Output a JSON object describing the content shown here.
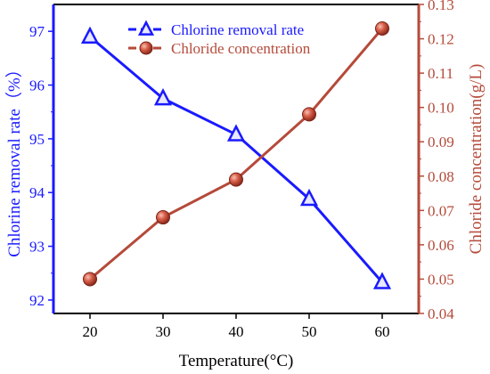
{
  "chart_data": {
    "type": "line",
    "x": [
      20,
      30,
      40,
      50,
      60
    ],
    "xlabel": "Temperature(°C)",
    "xlim": [
      15,
      65
    ],
    "xticks": [
      20,
      30,
      40,
      50,
      60
    ],
    "ylabel_left": "Chlorine removal rate（%）",
    "ylim_left": [
      91.75,
      97.5
    ],
    "yticks_left": [
      92,
      93,
      94,
      95,
      96,
      97
    ],
    "ylabel_right": "Chloride concentration(g/L)",
    "ylim_right": [
      0.04,
      0.13
    ],
    "yticks_right": [
      "0.04",
      "0.05",
      "0.06",
      "0.07",
      "0.08",
      "0.09",
      "0.10",
      "0.11",
      "0.12",
      "0.13"
    ],
    "legend_position": "top-center",
    "series": [
      {
        "name": "Chlorine removal rate",
        "axis": "left",
        "marker": "triangle",
        "color": "#1a1aff",
        "values": [
          96.9,
          95.75,
          95.08,
          93.88,
          92.33
        ]
      },
      {
        "name": "Chloride concentration",
        "axis": "right",
        "marker": "circle",
        "color": "#b54a3a",
        "values": [
          0.05,
          0.068,
          0.079,
          0.098,
          0.123
        ]
      }
    ]
  }
}
